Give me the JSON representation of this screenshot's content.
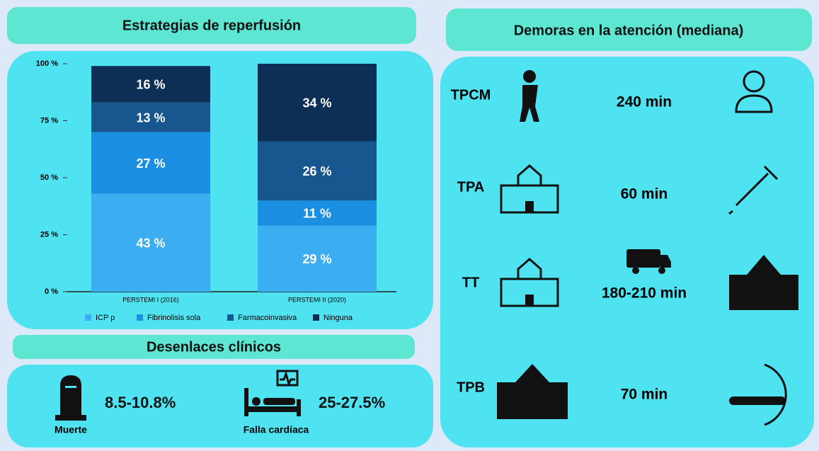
{
  "chart_data": {
    "type": "stacked-bar",
    "title": "Estrategias de reperfusión",
    "categories": [
      "PERSTEMI I (2016)",
      "PERSTEMI II (2020)"
    ],
    "series": [
      {
        "name": "ICP p",
        "color": "#3aaef0",
        "values": [
          43,
          29
        ],
        "value_labels": [
          "43 %",
          "29 %"
        ]
      },
      {
        "name": "Fibrinolisis sola",
        "color": "#1b8fe2",
        "values": [
          27,
          11
        ],
        "value_labels": [
          "27 %",
          "11 %"
        ]
      },
      {
        "name": "Farmacoinvasiva",
        "color": "#17568f",
        "values": [
          13,
          26
        ],
        "value_labels": [
          "13 %",
          "26 %"
        ]
      },
      {
        "name": "Ninguna",
        "color": "#0d2f55",
        "values": [
          16,
          34
        ],
        "value_labels": [
          "16 %",
          "34 %"
        ]
      }
    ],
    "ylim": [
      0,
      100
    ],
    "yticks": [
      {
        "value": 0,
        "label": "0 %"
      },
      {
        "value": 25,
        "label": "25 %"
      },
      {
        "value": 50,
        "label": "50 %"
      },
      {
        "value": 75,
        "label": "75 %"
      },
      {
        "value": 100,
        "label": "100 %"
      }
    ]
  },
  "delays": {
    "title": "Demoras en la atención (mediana)",
    "rows": [
      {
        "label": "TPCM",
        "value": "240 min"
      },
      {
        "label": "TPA",
        "value": "60 min"
      },
      {
        "label": "TT",
        "value": "180-210 min"
      },
      {
        "label": "TPB",
        "value": "70 min"
      }
    ]
  },
  "outcomes": {
    "title": "Desenlaces clínicos",
    "items": [
      {
        "value": "8.5-10.8%",
        "label": "Muerte"
      },
      {
        "value": "25-27.5%",
        "label": "Falla cardíaca"
      }
    ]
  }
}
